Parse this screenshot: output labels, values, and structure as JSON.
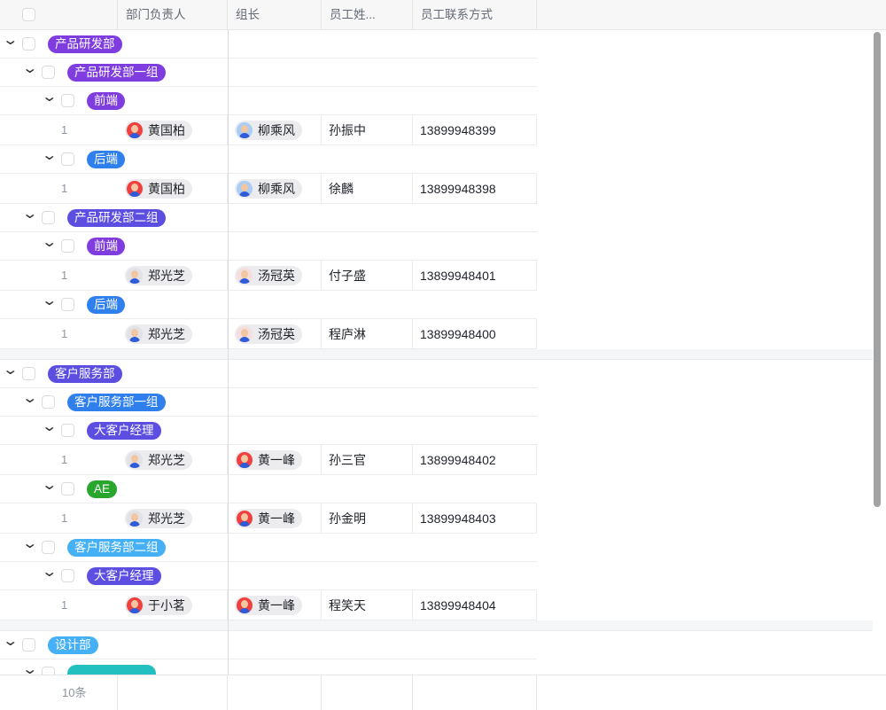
{
  "columns": [
    "部门负责人",
    "组长",
    "员工姓...",
    "员工联系方式"
  ],
  "footer": {
    "count": "10条"
  },
  "colors": {
    "purple": "#7f3de0",
    "blue": "#2f80ed",
    "indigo": "#5b4ee0",
    "lightblue": "#45b0f5",
    "green": "#28a62e",
    "teal": "#23c0c0"
  },
  "rows": [
    {
      "type": "group",
      "level": 0,
      "label": "产品研发部",
      "color": "#7f3de0"
    },
    {
      "type": "group",
      "level": 1,
      "label": "产品研发部一组",
      "color": "#7f3de0"
    },
    {
      "type": "group",
      "level": 2,
      "label": "前端",
      "color": "#7f3de0"
    },
    {
      "type": "record",
      "index": "1",
      "manager": "黄国柏",
      "manager_avatar": "#f04040",
      "leader": "柳乘风",
      "leader_avatar": "#a9cdf5",
      "name": "孙振中",
      "phone": "13899948399"
    },
    {
      "type": "group",
      "level": 2,
      "label": "后端",
      "color": "#2f80ed"
    },
    {
      "type": "record",
      "index": "1",
      "manager": "黄国柏",
      "manager_avatar": "#f04040",
      "leader": "柳乘风",
      "leader_avatar": "#a9cdf5",
      "name": "徐麟",
      "phone": "13899948398"
    },
    {
      "type": "group",
      "level": 1,
      "label": "产品研发部二组",
      "color": "#5b4ee0"
    },
    {
      "type": "group",
      "level": 2,
      "label": "前端",
      "color": "#7f3de0"
    },
    {
      "type": "record",
      "index": "1",
      "manager": "郑光芝",
      "manager_avatar": "#e2e2e6",
      "leader": "汤冠英",
      "leader_avatar": "#f5dede",
      "name": "付子盛",
      "phone": "13899948401"
    },
    {
      "type": "group",
      "level": 2,
      "label": "后端",
      "color": "#2f80ed"
    },
    {
      "type": "record",
      "index": "1",
      "manager": "郑光芝",
      "manager_avatar": "#e2e2e6",
      "leader": "汤冠英",
      "leader_avatar": "#f5dede",
      "name": "程庐淋",
      "phone": "13899948400"
    },
    {
      "type": "gap"
    },
    {
      "type": "group",
      "level": 0,
      "label": "客户服务部",
      "color": "#5b4ee0"
    },
    {
      "type": "group",
      "level": 1,
      "label": "客户服务部一组",
      "color": "#2f80ed"
    },
    {
      "type": "group",
      "level": 2,
      "label": "大客户经理",
      "color": "#5b4ee0"
    },
    {
      "type": "record",
      "index": "1",
      "manager": "郑光芝",
      "manager_avatar": "#e2e2e6",
      "leader": "黄一峰",
      "leader_avatar": "#f04040",
      "name": "孙三官",
      "phone": "13899948402"
    },
    {
      "type": "group",
      "level": 2,
      "label": "AE",
      "color": "#28a62e"
    },
    {
      "type": "record",
      "index": "1",
      "manager": "郑光芝",
      "manager_avatar": "#e2e2e6",
      "leader": "黄一峰",
      "leader_avatar": "#f04040",
      "name": "孙金明",
      "phone": "13899948403"
    },
    {
      "type": "group",
      "level": 1,
      "label": "客户服务部二组",
      "color": "#45b0f5"
    },
    {
      "type": "group",
      "level": 2,
      "label": "大客户经理",
      "color": "#5b4ee0"
    },
    {
      "type": "record",
      "index": "1",
      "manager": "于小茗",
      "manager_avatar": "#f04040",
      "leader": "黄一峰",
      "leader_avatar": "#f04040",
      "name": "程笑天",
      "phone": "13899948404"
    },
    {
      "type": "gap"
    },
    {
      "type": "group",
      "level": 0,
      "label": "设计部",
      "color": "#45b0f5"
    },
    {
      "type": "group",
      "level": 1,
      "label": "",
      "color": "#23c0c0"
    }
  ]
}
